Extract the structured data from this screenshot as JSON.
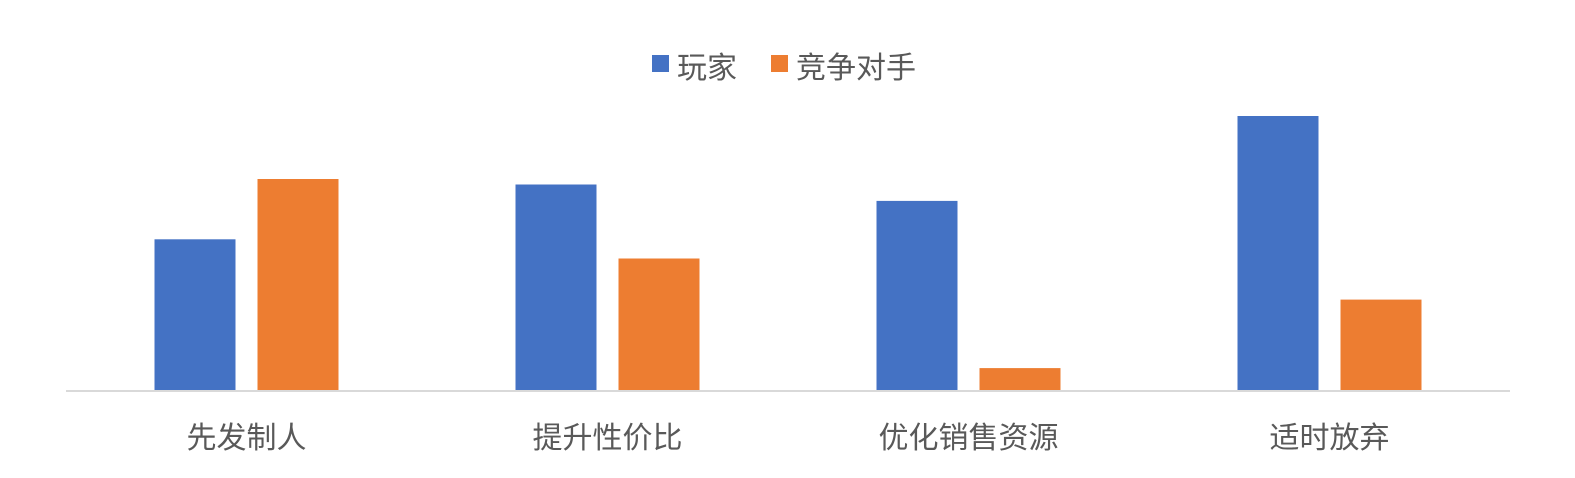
{
  "chart_data": {
    "type": "bar",
    "categories": [
      "先发制人",
      "提升性价比",
      "优化销售资源",
      "适时放弃"
    ],
    "series": [
      {
        "name": "玩家",
        "values": [
          5.5,
          7.5,
          6.9,
          10.0
        ],
        "color": "#4472C4"
      },
      {
        "name": "竞争对手",
        "values": [
          7.7,
          4.8,
          0.8,
          3.3
        ],
        "color": "#ED7D31"
      }
    ],
    "title": "",
    "xlabel": "",
    "ylabel": "",
    "ylim": [
      0,
      10.6
    ],
    "grid": false,
    "legend": "top-center"
  }
}
